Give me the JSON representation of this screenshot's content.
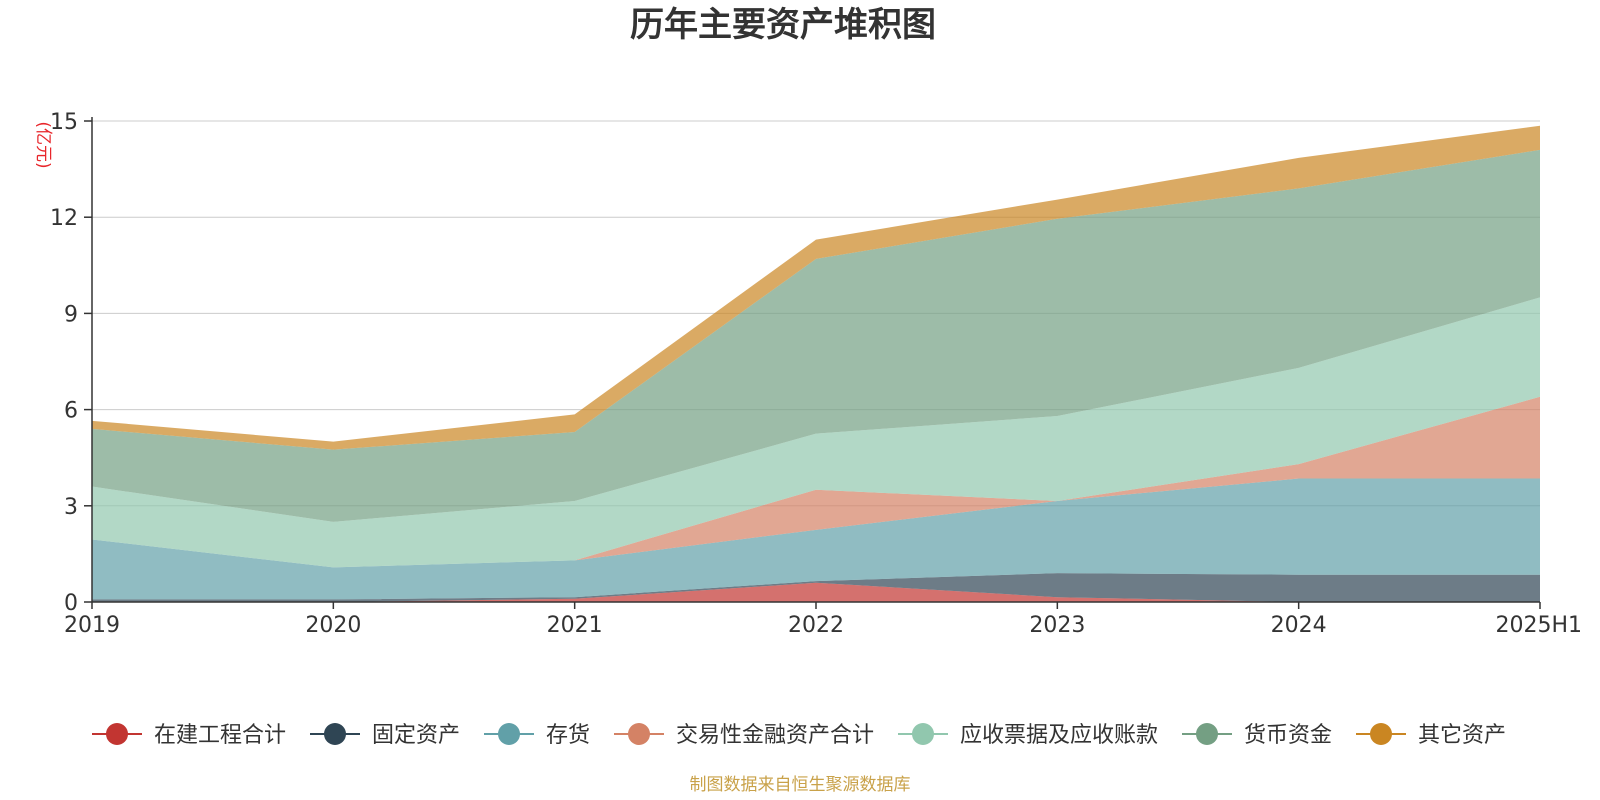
{
  "chart_data": {
    "type": "area",
    "stacked": true,
    "title": "历年主要资产堆积图",
    "unit_label": "(亿元)",
    "categories": [
      "2019",
      "2020",
      "2021",
      "2022",
      "2023",
      "2024",
      "2025H1"
    ],
    "ylim": [
      0,
      15
    ],
    "yticks": [
      "0",
      "3",
      "6",
      "9",
      "12",
      "15"
    ],
    "grid": true,
    "legend_position": "bottom",
    "series": [
      {
        "name": "在建工程合计",
        "color": "#c23531",
        "values": [
          0.0,
          0.0,
          0.1,
          0.6,
          0.15,
          0.0,
          0.0
        ]
      },
      {
        "name": "固定资产",
        "color": "#2f4554",
        "values": [
          0.08,
          0.08,
          0.05,
          0.05,
          0.75,
          0.85,
          0.85
        ]
      },
      {
        "name": "存货",
        "color": "#61a0a8",
        "values": [
          1.87,
          1.0,
          1.15,
          1.6,
          2.25,
          3.0,
          3.0
        ]
      },
      {
        "name": "交易性金融资产合计",
        "color": "#d48265",
        "values": [
          0.0,
          0.0,
          0.0,
          1.25,
          0.0,
          0.45,
          2.55
        ]
      },
      {
        "name": "应收票据及应收账款",
        "color": "#91c7ae",
        "values": [
          1.65,
          1.42,
          1.85,
          1.75,
          2.65,
          3.0,
          3.1
        ]
      },
      {
        "name": "货币资金",
        "color": "#749f83",
        "values": [
          1.8,
          2.25,
          2.15,
          5.45,
          6.15,
          5.6,
          4.6
        ]
      },
      {
        "name": "其它资产",
        "color": "#ca8622",
        "values": [
          0.25,
          0.25,
          0.55,
          0.6,
          0.6,
          0.95,
          0.75
        ]
      }
    ]
  },
  "footer": "制图数据来自恒生聚源数据库"
}
